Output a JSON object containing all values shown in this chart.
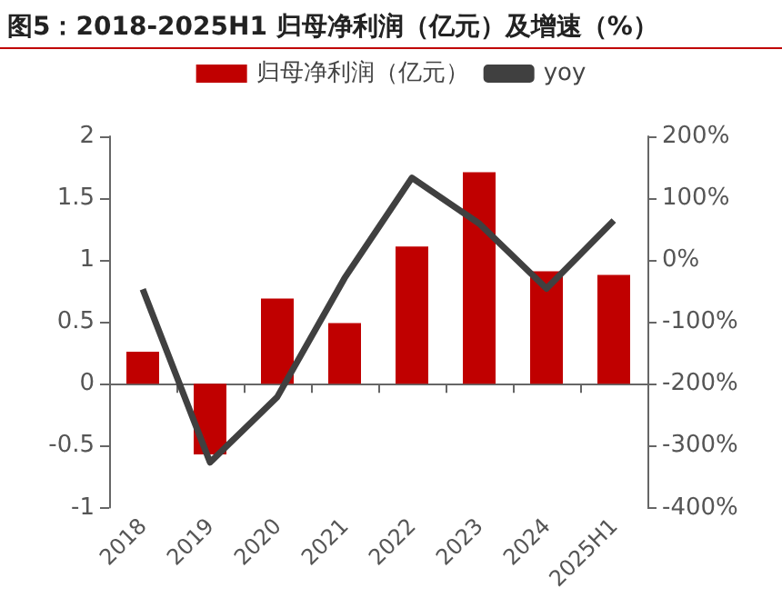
{
  "chart_data": {
    "type": "bar",
    "title": "图5：2018-2025H1 归母净利润（亿元）及增速（%）",
    "categories": [
      "2018",
      "2019",
      "2020",
      "2021",
      "2022",
      "2023",
      "2024",
      "2025H1"
    ],
    "series": [
      {
        "name": "归母净利润（亿元）",
        "color": "#c00000",
        "values": [
          0.26,
          -0.57,
          0.69,
          0.49,
          1.11,
          1.71,
          0.91,
          0.88
        ]
      },
      {
        "name": "yoy",
        "type": "line",
        "axis": "y2",
        "color": "#404040",
        "values": [
          -47,
          -327,
          -221,
          -29,
          133,
          59,
          -46,
          64
        ]
      }
    ],
    "ylim": [
      -1,
      2
    ],
    "yticks": [
      -1,
      -0.5,
      0,
      0.5,
      1,
      1.5,
      2
    ],
    "y2lim": [
      -400,
      200
    ],
    "y2ticks": [
      {
        "value": -400,
        "label": "-400%"
      },
      {
        "value": -300,
        "label": "-300%"
      },
      {
        "value": -200,
        "label": "-200%"
      },
      {
        "value": -100,
        "label": "-100%"
      },
      {
        "value": 0,
        "label": "0%"
      },
      {
        "value": 100,
        "label": "100%"
      },
      {
        "value": 200,
        "label": "200%"
      }
    ],
    "legend": "top",
    "marker": "none",
    "line_style": "solid"
  }
}
